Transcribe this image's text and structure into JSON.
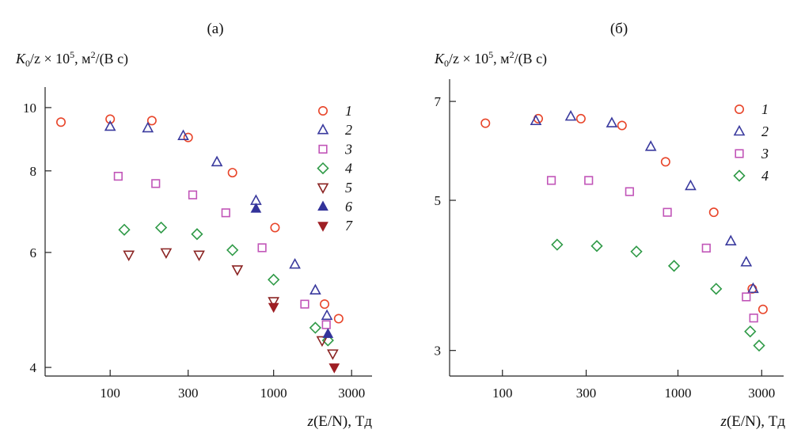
{
  "chart_data": [
    {
      "type": "scatter",
      "panel_label": "(а)",
      "ylabel_prefix": "K",
      "ylabel_sub": "0",
      "ylabel_mid": "/z × 10",
      "ylabel_sup_exp": "5",
      "ylabel_units": ", м",
      "ylabel_sup_units": "2",
      "ylabel_tail": "/(В с)",
      "xlabel_z": "z",
      "xlabel_rest": "(E/N), Тд",
      "x_scale": "log",
      "y_scale": "log",
      "xlim": [
        40,
        4000
      ],
      "ylim": [
        3.88,
        10.75
      ],
      "x_ticks": [
        100,
        300,
        1000,
        3000
      ],
      "x_tick_labels": [
        "100",
        "300",
        "1000",
        "3000"
      ],
      "y_ticks": [
        4,
        6,
        8,
        10
      ],
      "y_tick_labels": [
        "4",
        "6",
        "8",
        "10"
      ],
      "legend_position": "top-right",
      "series": [
        {
          "name": "1",
          "marker": "circle",
          "color": "#e8452a",
          "x": [
            50,
            100,
            180,
            300,
            560,
            1020,
            2050,
            2500
          ],
          "y": [
            9.5,
            9.6,
            9.55,
            9.0,
            7.95,
            6.55,
            5.0,
            4.75
          ]
        },
        {
          "name": "2",
          "marker": "triangle-open",
          "color": "#3a3a9e",
          "x": [
            100,
            170,
            280,
            450,
            780,
            1350,
            1800,
            2120
          ],
          "y": [
            9.35,
            9.3,
            9.05,
            8.25,
            7.2,
            5.75,
            5.25,
            4.8
          ]
        },
        {
          "name": "3",
          "marker": "square",
          "color": "#c155b8",
          "x": [
            112,
            190,
            320,
            510,
            850,
            1550,
            2100
          ],
          "y": [
            7.85,
            7.65,
            7.35,
            6.9,
            6.1,
            5.0,
            4.65
          ]
        },
        {
          "name": "4",
          "marker": "diamond",
          "color": "#2f9a47",
          "x": [
            122,
            205,
            340,
            560,
            1000,
            1800,
            2150
          ],
          "y": [
            6.5,
            6.55,
            6.4,
            6.05,
            5.45,
            4.6,
            4.4
          ]
        },
        {
          "name": "5",
          "marker": "triangle-down-open",
          "color": "#8b2423",
          "x": [
            130,
            220,
            350,
            600,
            1000,
            1980,
            2300
          ],
          "y": [
            5.95,
            6.0,
            5.95,
            5.65,
            5.05,
            4.4,
            4.2
          ]
        },
        {
          "name": "6",
          "marker": "triangle-filled",
          "color": "#33339a",
          "x": [
            780,
            2150
          ],
          "y": [
            7.0,
            4.5
          ]
        },
        {
          "name": "7",
          "marker": "triangle-down-filled",
          "color": "#9e1f24",
          "x": [
            1000,
            2350
          ],
          "y": [
            4.95,
            4.0
          ]
        }
      ]
    },
    {
      "type": "scatter",
      "panel_label": "(б)",
      "ylabel_prefix": "K",
      "ylabel_sub": "0",
      "ylabel_mid": "/z × 10",
      "ylabel_sup_exp": "5",
      "ylabel_units": ", м",
      "ylabel_sup_units": "2",
      "ylabel_tail": "/(В с)",
      "xlabel_z": "z",
      "xlabel_rest": "(E/N), Тд",
      "x_scale": "log",
      "y_scale": "log",
      "xlim": [
        50,
        4000
      ],
      "ylim": [
        2.75,
        7.55
      ],
      "x_ticks": [
        100,
        300,
        1000,
        3000
      ],
      "x_tick_labels": [
        "100",
        "300",
        "1000",
        "3000"
      ],
      "y_ticks": [
        3,
        5,
        7
      ],
      "y_tick_labels": [
        "3",
        "5",
        "7"
      ],
      "legend_position": "top-right",
      "series": [
        {
          "name": "1",
          "marker": "circle",
          "color": "#e8452a",
          "x": [
            80,
            160,
            280,
            480,
            850,
            1600,
            2650,
            3050
          ],
          "y": [
            6.5,
            6.6,
            6.6,
            6.45,
            5.7,
            4.8,
            3.7,
            3.45
          ]
        },
        {
          "name": "2",
          "marker": "triangle-open",
          "color": "#3a3a9e",
          "x": [
            155,
            245,
            420,
            700,
            1180,
            2000,
            2450,
            2680
          ],
          "y": [
            6.55,
            6.65,
            6.5,
            6.0,
            5.25,
            4.35,
            4.05,
            3.7
          ]
        },
        {
          "name": "3",
          "marker": "square",
          "color": "#c155b8",
          "x": [
            190,
            310,
            530,
            870,
            1450,
            2450,
            2700
          ],
          "y": [
            5.35,
            5.35,
            5.15,
            4.8,
            4.25,
            3.6,
            3.35
          ]
        },
        {
          "name": "4",
          "marker": "diamond",
          "color": "#2f9a47",
          "x": [
            205,
            345,
            580,
            950,
            1650,
            2580,
            2900
          ],
          "y": [
            4.3,
            4.28,
            4.2,
            4.0,
            3.7,
            3.2,
            3.05
          ]
        }
      ]
    }
  ]
}
